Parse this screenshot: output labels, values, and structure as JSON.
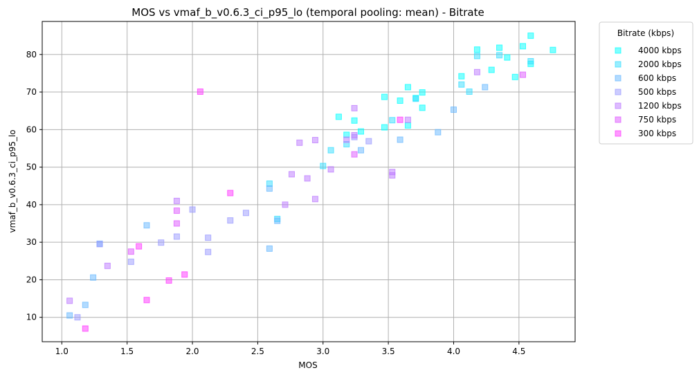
{
  "chart_data": {
    "type": "scatter",
    "title": "MOS vs vmaf_b_v0.6.3_ci_p95_lo (temporal pooling: mean) - Bitrate",
    "xlabel": "MOS",
    "ylabel": "vmaf_b_v0.6.3_ci_p95_lo",
    "xlim": [
      0.85,
      4.93
    ],
    "ylim": [
      3.5,
      88.8
    ],
    "x_ticks": [
      "1.0",
      "1.5",
      "2.0",
      "2.5",
      "3.0",
      "3.5",
      "4.0",
      "4.5"
    ],
    "y_ticks": [
      "10",
      "20",
      "30",
      "40",
      "50",
      "60",
      "70",
      "80"
    ],
    "x_tick_values": [
      1.0,
      1.5,
      2.0,
      2.5,
      3.0,
      3.5,
      4.0,
      4.5
    ],
    "y_tick_values": [
      10,
      20,
      30,
      40,
      50,
      60,
      70,
      80
    ],
    "grid": true,
    "marker": "square",
    "legend": {
      "title": "Bitrate (kbps)",
      "placement": "outside-top-right"
    },
    "series": [
      {
        "name": "4000 kbps",
        "color": "#00ffff",
        "points": [
          [
            4.59,
            85.0
          ],
          [
            4.35,
            81.8
          ],
          [
            4.18,
            81.3
          ],
          [
            4.53,
            82.2
          ],
          [
            4.76,
            81.2
          ],
          [
            4.41,
            79.2
          ],
          [
            4.59,
            77.5
          ],
          [
            4.29,
            75.9
          ],
          [
            4.06,
            74.2
          ],
          [
            4.47,
            74.0
          ],
          [
            3.65,
            71.3
          ],
          [
            3.76,
            69.9
          ],
          [
            3.71,
            68.4
          ],
          [
            3.47,
            68.7
          ],
          [
            3.59,
            67.7
          ],
          [
            3.76,
            65.8
          ],
          [
            3.12,
            63.4
          ],
          [
            3.24,
            62.4
          ],
          [
            3.65,
            61.1
          ],
          [
            3.47,
            60.6
          ],
          [
            3.29,
            59.5
          ],
          [
            3.18,
            58.6
          ]
        ]
      },
      {
        "name": "2000 kbps",
        "color": "#33ddff",
        "points": [
          [
            4.35,
            79.8
          ],
          [
            4.18,
            79.6
          ],
          [
            4.59,
            78.2
          ],
          [
            4.06,
            72.0
          ],
          [
            4.12,
            70.1
          ],
          [
            3.71,
            68.2
          ],
          [
            3.53,
            62.5
          ],
          [
            3.18,
            56.1
          ],
          [
            3.06,
            54.5
          ],
          [
            3.0,
            50.3
          ],
          [
            2.59,
            45.6
          ],
          [
            2.65,
            36.2
          ]
        ]
      },
      {
        "name": "600 kbps",
        "color": "#66b8ff",
        "points": [
          [
            4.24,
            71.3
          ],
          [
            4.0,
            65.3
          ],
          [
            3.88,
            59.3
          ],
          [
            3.59,
            57.3
          ],
          [
            3.29,
            54.5
          ],
          [
            2.59,
            44.3
          ],
          [
            2.65,
            35.7
          ],
          [
            2.59,
            28.3
          ],
          [
            1.65,
            34.5
          ],
          [
            1.29,
            29.6
          ],
          [
            1.24,
            20.6
          ],
          [
            1.18,
            13.3
          ],
          [
            1.06,
            10.5
          ]
        ]
      },
      {
        "name": "500 kbps",
        "color": "#9999ff",
        "points": [
          [
            3.24,
            58.0
          ],
          [
            3.35,
            56.9
          ],
          [
            2.0,
            38.7
          ],
          [
            2.41,
            37.8
          ],
          [
            2.29,
            35.8
          ],
          [
            2.12,
            31.2
          ],
          [
            1.88,
            31.5
          ],
          [
            1.76,
            29.9
          ],
          [
            1.29,
            29.5
          ],
          [
            2.12,
            27.4
          ],
          [
            1.53,
            24.8
          ],
          [
            1.12,
            10.0
          ]
        ]
      },
      {
        "name": "1200 kbps",
        "color": "#bb77ff",
        "points": [
          [
            4.18,
            75.3
          ],
          [
            3.24,
            65.7
          ],
          [
            3.65,
            62.6
          ],
          [
            2.94,
            57.2
          ],
          [
            3.24,
            58.5
          ],
          [
            3.18,
            57.3
          ],
          [
            2.82,
            56.5
          ],
          [
            3.53,
            48.7
          ],
          [
            3.53,
            47.8
          ],
          [
            3.06,
            49.4
          ],
          [
            2.76,
            48.1
          ],
          [
            2.88,
            47.0
          ],
          [
            2.94,
            41.5
          ],
          [
            2.71,
            40.0
          ],
          [
            1.88,
            41.0
          ],
          [
            1.35,
            23.7
          ],
          [
            1.06,
            14.4
          ]
        ]
      },
      {
        "name": "750 kbps",
        "color": "#dd55ff",
        "points": [
          [
            4.53,
            74.6
          ],
          [
            3.24,
            53.4
          ],
          [
            1.88,
            38.4
          ],
          [
            1.88,
            35.0
          ],
          [
            1.53,
            27.5
          ]
        ]
      },
      {
        "name": "300 kbps",
        "color": "#ff33ff",
        "points": [
          [
            2.06,
            70.1
          ],
          [
            3.59,
            62.6
          ],
          [
            2.29,
            43.1
          ],
          [
            1.59,
            28.9
          ],
          [
            1.94,
            21.4
          ],
          [
            1.82,
            19.8
          ],
          [
            1.65,
            14.6
          ],
          [
            1.18,
            7.0
          ]
        ]
      }
    ]
  }
}
